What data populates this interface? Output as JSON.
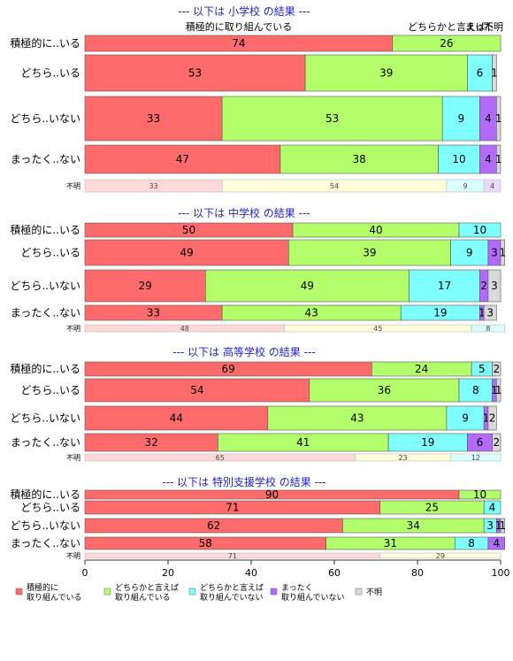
{
  "chart_data": {
    "type": "bar",
    "orientation": "horizontal",
    "stacked": true,
    "xlim": [
      0,
      100
    ],
    "x_ticks": [
      0,
      20,
      40,
      60,
      80,
      100
    ],
    "grid": false,
    "header_labels": [
      "積極的に取り組んでいる",
      "どちらかと言えば",
      "まった",
      "不明"
    ],
    "legend": {
      "placement": "bottom",
      "entries": [
        {
          "label_lines": [
            "積極的に",
            "取り組んでいる"
          ],
          "color": "#ff6b6b"
        },
        {
          "label_lines": [
            "どちらかと言えば",
            "取り組んでいる"
          ],
          "color": "#b3ff6b"
        },
        {
          "label_lines": [
            "どちらかと言えば",
            "取り組んでいない"
          ],
          "color": "#80ffff"
        },
        {
          "label_lines": [
            "まったく",
            "取り組んでいない"
          ],
          "color": "#b36bff"
        },
        {
          "label_lines": [
            "不明"
          ],
          "color": "#d9d9d9"
        }
      ]
    },
    "colors": {
      "main": [
        "#ff6b6b",
        "#b3ff6b",
        "#80ffff",
        "#b36bff",
        "#d9d9d9"
      ],
      "unknown_row": [
        "#ffd9d9",
        "#ffffd9",
        "#d9ffff",
        "#ecd9ff",
        "#efefef"
      ]
    },
    "panels": [
      {
        "title": "--- 以下は 小学校 の結果 ---",
        "rows": [
          {
            "label": "積極的に..いる",
            "values": [
              74,
              26,
              0,
              0,
              0
            ]
          },
          {
            "label": "どちら..いる",
            "values": [
              53,
              39,
              6,
              0,
              1
            ]
          },
          {
            "label": "どちら..いない",
            "values": [
              33,
              53,
              9,
              4,
              1
            ]
          },
          {
            "label": "まったく..ない",
            "values": [
              47,
              38,
              10,
              4,
              1
            ]
          },
          {
            "label": "不明",
            "values": [
              33,
              54,
              9,
              4,
              0
            ],
            "small": true
          }
        ]
      },
      {
        "title": "--- 以下は 中学校 の結果 ---",
        "rows": [
          {
            "label": "積極的に..いる",
            "values": [
              50,
              40,
              10,
              0,
              0
            ]
          },
          {
            "label": "どちら..いる",
            "values": [
              49,
              39,
              9,
              3,
              1
            ]
          },
          {
            "label": "どちら..いない",
            "values": [
              29,
              49,
              17,
              2,
              3
            ]
          },
          {
            "label": "まったく..ない",
            "values": [
              33,
              43,
              19,
              1,
              3
            ]
          },
          {
            "label": "不明",
            "values": [
              48,
              45,
              8,
              0,
              0
            ],
            "small": true
          }
        ]
      },
      {
        "title": "--- 以下は 高等学校 の結果 ---",
        "rows": [
          {
            "label": "積極的に..いる",
            "values": [
              69,
              24,
              5,
              0,
              2
            ]
          },
          {
            "label": "どちら..いる",
            "values": [
              54,
              36,
              8,
              1,
              1
            ]
          },
          {
            "label": "どちら..いない",
            "values": [
              44,
              43,
              9,
              1,
              2
            ]
          },
          {
            "label": "まったく..ない",
            "values": [
              32,
              41,
              19,
              6,
              2
            ]
          },
          {
            "label": "不明",
            "values": [
              65,
              23,
              12,
              0,
              0
            ],
            "small": true
          }
        ]
      },
      {
        "title": "--- 以下は 特別支援学校 の結果 ---",
        "rows": [
          {
            "label": "積極的に..いる",
            "values": [
              90,
              10,
              0,
              0,
              0
            ]
          },
          {
            "label": "どちら..いる",
            "values": [
              71,
              25,
              4,
              0,
              0
            ]
          },
          {
            "label": "どちら..いない",
            "values": [
              62,
              34,
              3,
              1,
              1
            ]
          },
          {
            "label": "まったく..ない",
            "values": [
              58,
              31,
              8,
              4,
              0
            ]
          },
          {
            "label": "不明",
            "values": [
              71,
              29,
              0,
              0,
              0
            ],
            "small": true
          }
        ]
      }
    ]
  }
}
